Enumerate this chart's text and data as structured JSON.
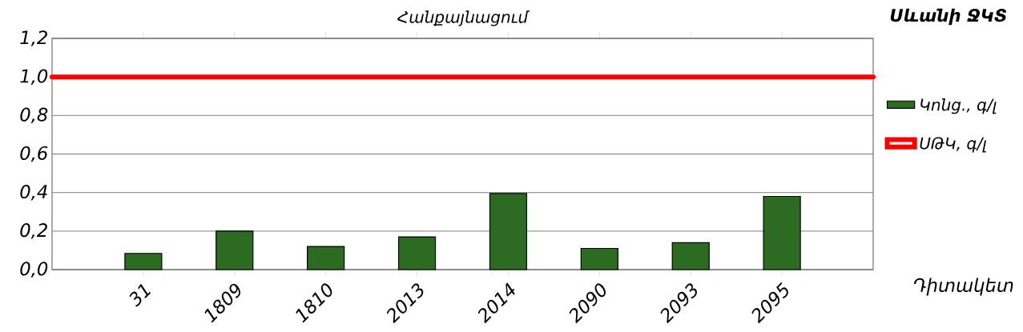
{
  "chart_data": {
    "type": "bar",
    "title": "Հանքայնացում",
    "xlabel": "Դիտակետ",
    "annotations": [
      "Սևանի ՋԿՏ"
    ],
    "categories": [
      "31",
      "1809",
      "1810",
      "2013",
      "2014",
      "2090",
      "2093",
      "2095"
    ],
    "series": [
      {
        "name": "Կոնց., գ/լ",
        "color": "#2e6b22",
        "values": [
          0.084,
          0.2,
          0.12,
          0.17,
          0.395,
          0.11,
          0.14,
          0.38
        ]
      }
    ],
    "ylim": [
      0,
      1.2
    ],
    "yticks": [
      {
        "value": 0,
        "label": "0,0"
      },
      {
        "value": 0.2,
        "label": "0,2"
      },
      {
        "value": 0.4,
        "label": "0,4"
      },
      {
        "value": 0.6,
        "label": "0,6"
      },
      {
        "value": 0.8,
        "label": "0,8"
      },
      {
        "value": 1.0,
        "label": "1,0"
      },
      {
        "value": 1.2,
        "label": "1,2"
      }
    ],
    "ref_lines": [
      {
        "axis": "y",
        "value": 1.0,
        "label": "ՍԹԿ, գ/լ",
        "color": "#ff0000"
      }
    ],
    "grid": "y",
    "legend": "right"
  }
}
